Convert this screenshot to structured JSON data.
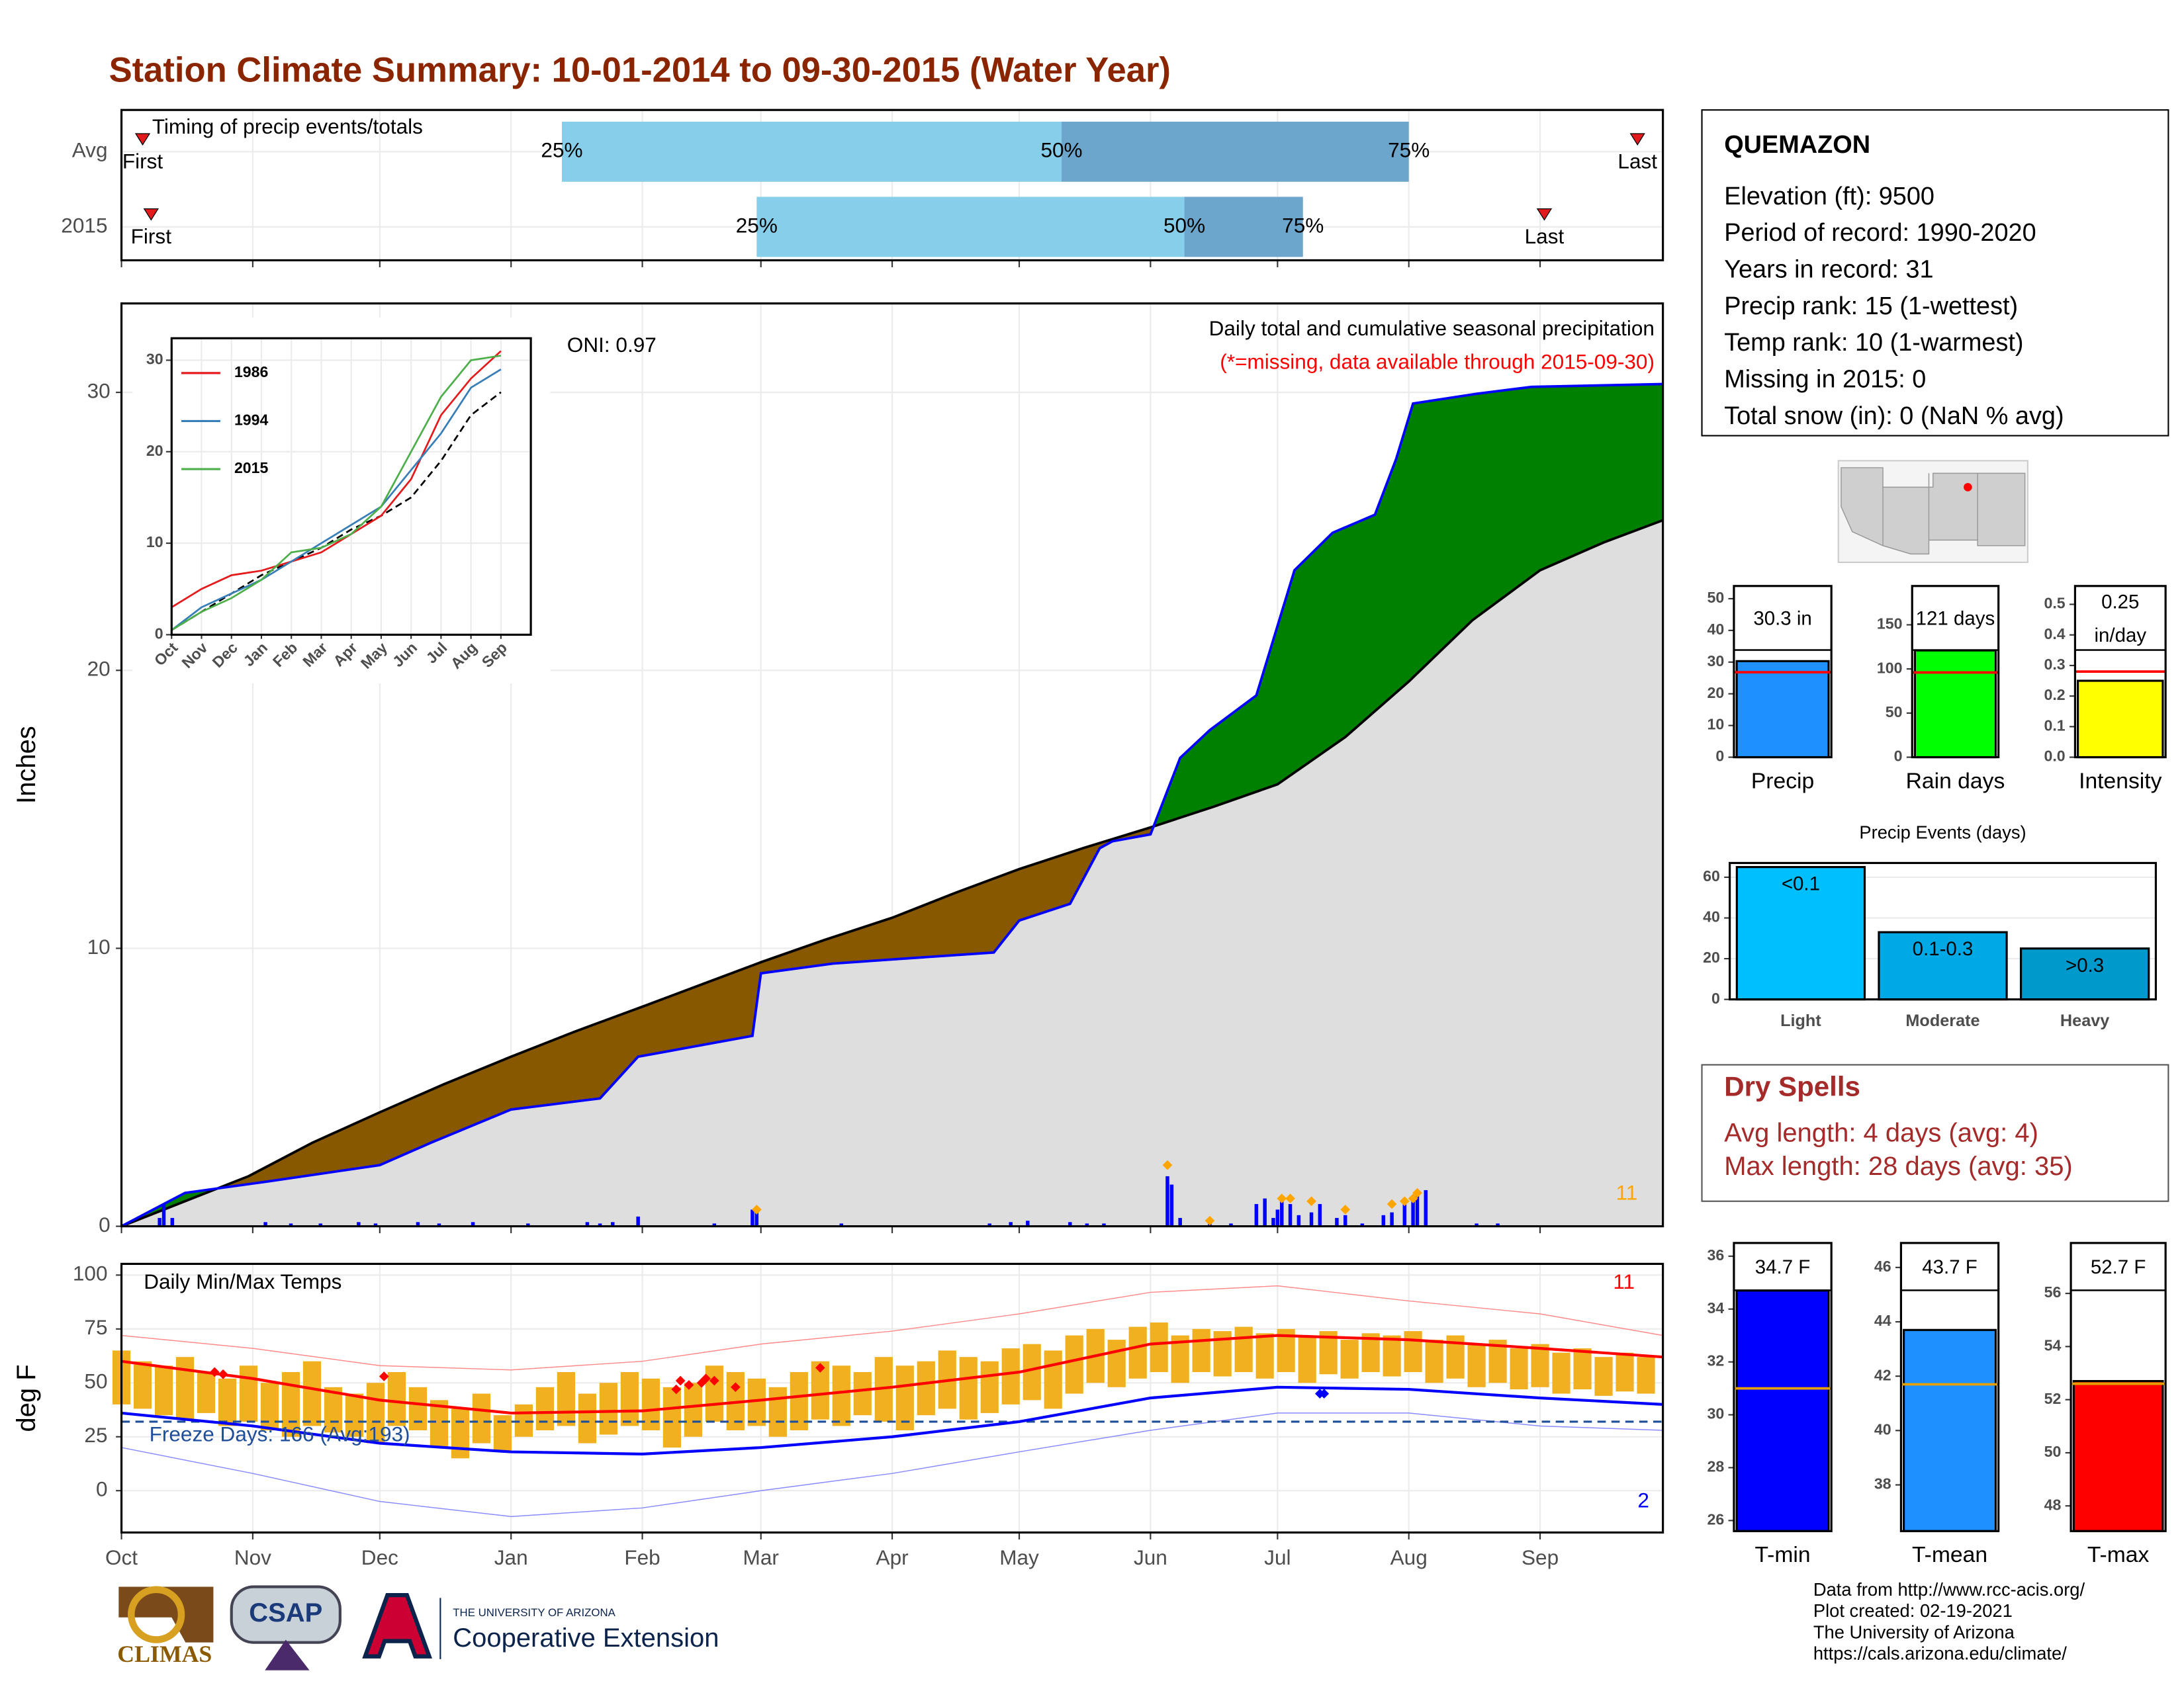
{
  "header": {
    "title": "Station Climate Summary: 10-01-2014 to 09-30-2015 (Water Year)"
  },
  "station": {
    "name": "QUEMAZON",
    "lines": [
      "Elevation (ft): 9500",
      "Period of record: 1990-2020",
      "Years in record: 31",
      "Precip rank: 15 (1-wettest)",
      "Temp rank: 10 (1-warmest)",
      "Missing in 2015: 0",
      "Total snow (in): 0 (NaN % avg)"
    ]
  },
  "dry_spells": {
    "title": "Dry Spells",
    "lines": [
      "Avg length: 4 days (avg: 4)",
      "Max length: 28 days (avg: 35)"
    ]
  },
  "footer": {
    "lines": [
      "Data from http://www.rcc-acis.org/",
      "Plot created: 02-19-2021",
      "The University of Arizona",
      "https://cals.arizona.edu/climate/"
    ]
  },
  "logos": {
    "climas": "CLIMAS",
    "csap": "CSAP",
    "university": "THE UNIVERSITY OF ARIZONA",
    "extension": "Cooperative Extension"
  },
  "chart_data": [
    {
      "type": "timing",
      "title": "Timing of precip events/totals",
      "categories": [
        "Avg",
        "2015"
      ],
      "first": [
        5,
        7
      ],
      "q25": [
        104,
        150
      ],
      "q50": [
        222,
        251
      ],
      "q75": [
        304,
        279
      ],
      "last": [
        358,
        336
      ],
      "first_label": "First",
      "last_label": "Last",
      "quantile_labels": [
        "25%",
        "50%",
        "75%"
      ],
      "colors": [
        "#87ceeb",
        "#6ca6cd"
      ],
      "marker_color": "#e31a1c",
      "xlim": [
        0,
        364
      ],
      "xticks": [
        0,
        31,
        61,
        92,
        123,
        151,
        182,
        212,
        243,
        273,
        304,
        335
      ],
      "grid": true
    },
    {
      "type": "cumulative",
      "title": "Daily total and cumulative seasonal precipitation",
      "subtitle": "(*=missing, data available through 2015-09-30)",
      "annotation": "ONI: 0.97",
      "count": 11,
      "ylabel": "Inches",
      "xlim": [
        0,
        364
      ],
      "ylim": [
        0,
        33.2
      ],
      "xticks": [
        0,
        31,
        61,
        92,
        123,
        151,
        182,
        212,
        243,
        273,
        304,
        335
      ],
      "yticks": [
        0,
        10,
        20,
        30
      ],
      "grid": true,
      "average": {
        "x": [
          0,
          15,
          30,
          45,
          61,
          76,
          92,
          107,
          123,
          137,
          151,
          166,
          182,
          197,
          212,
          227,
          243,
          258,
          273,
          289,
          304,
          319,
          335,
          350,
          364
        ],
        "values": [
          0,
          0.9,
          1.8,
          3.0,
          4.1,
          5.1,
          6.1,
          7.0,
          7.9,
          8.7,
          9.5,
          10.3,
          11.1,
          12.0,
          12.85,
          13.6,
          14.35,
          15.1,
          15.9,
          17.6,
          19.6,
          21.8,
          23.6,
          24.6,
          25.4
        ],
        "color": "#000000",
        "fill": "#dedede"
      },
      "series": [
        {
          "x": [
            0,
            10,
            15,
            34,
            61,
            73,
            92,
            113,
            122,
            149,
            151,
            168,
            182,
            206,
            212,
            224,
            231,
            234,
            243,
            250,
            257,
            268,
            277,
            286,
            296,
            301,
            305,
            320,
            333,
            364
          ],
          "values": [
            0,
            0.8,
            1.2,
            1.6,
            2.2,
            3.0,
            4.2,
            4.6,
            6.1,
            6.85,
            9.1,
            9.45,
            9.6,
            9.85,
            11.0,
            11.6,
            13.6,
            13.85,
            14.1,
            16.85,
            17.85,
            19.1,
            23.6,
            24.95,
            25.6,
            27.6,
            29.6,
            29.95,
            30.2,
            30.3
          ],
          "color": "#0000ff"
        }
      ],
      "above_color": "#008000",
      "below_color": "#875800",
      "daily": {
        "x": [
          9,
          10,
          12,
          34,
          40,
          47,
          56,
          60,
          70,
          75,
          83,
          96,
          110,
          113,
          116,
          122,
          140,
          149,
          150,
          170,
          205,
          210,
          214,
          224,
          228,
          232,
          247,
          248,
          250,
          257,
          262,
          268,
          270,
          272,
          273,
          274,
          276,
          278,
          281,
          283,
          287,
          289,
          293,
          298,
          300,
          303,
          305,
          306,
          308,
          320,
          325
        ],
        "values": [
          0.3,
          0.8,
          0.3,
          0.15,
          0.1,
          0.1,
          0.15,
          0.1,
          0.15,
          0.1,
          0.15,
          0.1,
          0.15,
          0.1,
          0.15,
          0.35,
          0.1,
          0.6,
          0.5,
          0.1,
          0.1,
          0.15,
          0.2,
          0.15,
          0.1,
          0.1,
          1.8,
          1.5,
          0.3,
          0.1,
          0.1,
          0.8,
          1.0,
          0.3,
          0.6,
          1.0,
          0.8,
          0.4,
          0.5,
          0.8,
          0.3,
          0.4,
          0.1,
          0.4,
          0.5,
          0.9,
          0.9,
          1.1,
          1.3,
          0.1,
          0.1
        ],
        "color": "#0000ff"
      },
      "events": {
        "x": [
          150,
          247,
          257,
          274,
          276,
          281,
          289,
          300,
          303,
          305,
          306
        ],
        "values": [
          0.6,
          2.2,
          0.2,
          1.0,
          1.0,
          0.9,
          0.6,
          0.8,
          0.9,
          1.0,
          1.2
        ],
        "color": "#ffa500"
      }
    },
    {
      "type": "line",
      "categories": [
        "Oct",
        "Nov",
        "Dec",
        "Jan",
        "Feb",
        "Mar",
        "Apr",
        "May",
        "Jun",
        "Jul",
        "Aug",
        "Sep"
      ],
      "series": [
        {
          "name": "1986",
          "color": "#e41a1c",
          "values": [
            3,
            5,
            6.5,
            7,
            8,
            9,
            11,
            13,
            17,
            24,
            28,
            31
          ]
        },
        {
          "name": "1994",
          "color": "#377eb8",
          "values": [
            0.5,
            3,
            4.5,
            6,
            8,
            10,
            12,
            14,
            18,
            22,
            27,
            29
          ]
        },
        {
          "name": "2015",
          "color": "#4daf4a",
          "values": [
            0.5,
            2.5,
            4,
            6,
            9,
            9.5,
            11,
            14,
            20,
            26,
            30,
            30.5
          ]
        }
      ],
      "average": {
        "values": [
          0.5,
          2.5,
          4.5,
          6.5,
          8,
          9.5,
          11.5,
          13,
          15,
          19,
          24,
          26.5
        ],
        "color": "#000000"
      },
      "ylim": [
        0,
        32.4
      ],
      "yticks": [
        0,
        10,
        20,
        30
      ],
      "grid": true
    },
    {
      "type": "temperature",
      "title": "Daily Min/Max Temps",
      "annotation": "Freeze Days: 166 (Avg:193)",
      "ylabel": "deg F",
      "xlim": [
        0,
        364
      ],
      "ylim": [
        -19.4,
        105.2
      ],
      "xticks": [
        {
          "value": 0,
          "label": "Oct"
        },
        {
          "value": 31,
          "label": "Nov"
        },
        {
          "value": 61,
          "label": "Dec"
        },
        {
          "value": 92,
          "label": "Jan"
        },
        {
          "value": 123,
          "label": "Feb"
        },
        {
          "value": 151,
          "label": "Mar"
        },
        {
          "value": 182,
          "label": "Apr"
        },
        {
          "value": 212,
          "label": "May"
        },
        {
          "value": 243,
          "label": "Jun"
        },
        {
          "value": 273,
          "label": "Jul"
        },
        {
          "value": 304,
          "label": "Aug"
        },
        {
          "value": 335,
          "label": "Sep"
        }
      ],
      "yticks": [
        0,
        25,
        50,
        75,
        100
      ],
      "grid": true,
      "freeze": 32,
      "freeze_color": "#1f4e99",
      "daily": {
        "x": [
          0,
          5,
          10,
          15,
          20,
          25,
          30,
          35,
          40,
          45,
          50,
          55,
          60,
          65,
          70,
          75,
          80,
          85,
          90,
          95,
          100,
          105,
          110,
          115,
          120,
          125,
          130,
          135,
          140,
          145,
          150,
          155,
          160,
          165,
          170,
          175,
          180,
          185,
          190,
          195,
          200,
          205,
          210,
          215,
          220,
          225,
          230,
          235,
          240,
          245,
          250,
          255,
          260,
          265,
          270,
          275,
          280,
          285,
          290,
          295,
          300,
          305,
          310,
          315,
          320,
          325,
          330,
          335,
          340,
          345,
          350,
          355,
          360
        ],
        "low": [
          40,
          38,
          35,
          33,
          36,
          30,
          32,
          28,
          25,
          30,
          27,
          25,
          22,
          30,
          28,
          20,
          15,
          22,
          18,
          25,
          28,
          30,
          22,
          26,
          30,
          28,
          20,
          25,
          32,
          28,
          30,
          25,
          28,
          33,
          30,
          35,
          32,
          28,
          35,
          38,
          33,
          36,
          40,
          42,
          38,
          45,
          50,
          48,
          52,
          55,
          50,
          55,
          53,
          55,
          52,
          55,
          50,
          54,
          52,
          55,
          53,
          55,
          50,
          52,
          48,
          50,
          47,
          48,
          45,
          47,
          44,
          46,
          45
        ],
        "high": [
          65,
          60,
          58,
          62,
          55,
          52,
          58,
          50,
          55,
          60,
          48,
          45,
          50,
          55,
          48,
          42,
          38,
          45,
          35,
          40,
          48,
          55,
          45,
          50,
          55,
          52,
          48,
          50,
          58,
          55,
          52,
          48,
          55,
          60,
          58,
          55,
          62,
          58,
          60,
          65,
          62,
          60,
          66,
          68,
          65,
          72,
          75,
          70,
          76,
          78,
          72,
          75,
          74,
          76,
          73,
          75,
          72,
          74,
          70,
          73,
          72,
          74,
          70,
          72,
          68,
          70,
          66,
          68,
          64,
          66,
          62,
          64,
          62
        ],
        "color": "#f0b020"
      },
      "lines": [
        {
          "x": [
            0,
            31,
            61,
            92,
            123,
            151,
            182,
            212,
            243,
            273,
            304,
            335,
            364
          ],
          "values": [
            72,
            66,
            58,
            56,
            60,
            68,
            74,
            82,
            92,
            95,
            88,
            82,
            72
          ],
          "color": "#ff8a8a",
          "width": 0.7
        },
        {
          "x": [
            0,
            31,
            61,
            92,
            123,
            151,
            182,
            212,
            243,
            273,
            304,
            335,
            364
          ],
          "values": [
            20,
            8,
            -5,
            -12,
            -8,
            0,
            8,
            18,
            28,
            36,
            36,
            30,
            28
          ],
          "color": "#8a8aff",
          "width": 0.7
        },
        {
          "x": [
            0,
            31,
            61,
            92,
            123,
            151,
            182,
            212,
            243,
            273,
            304,
            335,
            364
          ],
          "values": [
            60,
            52,
            42,
            36,
            37,
            42,
            48,
            55,
            68,
            72,
            70,
            66,
            62
          ],
          "color": "#ff0000",
          "width": 2
        },
        {
          "x": [
            0,
            31,
            61,
            92,
            123,
            151,
            182,
            212,
            243,
            273,
            304,
            335,
            364
          ],
          "values": [
            36,
            30,
            22,
            18,
            17,
            20,
            25,
            32,
            43,
            48,
            47,
            43,
            40
          ],
          "color": "#0000ff",
          "width": 2
        }
      ],
      "records_high": {
        "x": [
          22,
          24,
          62,
          131,
          132,
          134,
          137,
          138,
          140,
          145,
          165
        ],
        "values": [
          55,
          54,
          53,
          47,
          51,
          49,
          50,
          52,
          51,
          48,
          57
        ],
        "color": "#ff0000"
      },
      "records_low": {
        "x": [
          283,
          284
        ],
        "values": [
          45,
          45
        ],
        "color": "#0000ff"
      },
      "high_count": 11,
      "low_count": 2
    },
    {
      "type": "single-bar",
      "categories": [
        "Precip"
      ],
      "values": [
        30.3
      ],
      "value_labels": [
        "30.3 in"
      ],
      "average": 26.8,
      "average_color": "#ff0000",
      "color": "#1e90ff",
      "ylim": [
        0,
        54
      ],
      "yticks": [
        0,
        10,
        20,
        30,
        40,
        50
      ]
    },
    {
      "type": "single-bar",
      "categories": [
        "Rain days"
      ],
      "values": [
        121
      ],
      "value_labels": [
        "121 days"
      ],
      "average": 96,
      "average_color": "#ff0000",
      "color": "#00ff00",
      "ylim": [
        0,
        194
      ],
      "yticks": [
        0,
        50,
        100,
        150
      ]
    },
    {
      "type": "single-bar",
      "categories": [
        "Intensity"
      ],
      "values": [
        0.25
      ],
      "value_labels": [
        "0.25 in/day"
      ],
      "average": 0.28,
      "average_color": "#ff0000",
      "color": "#ffff00",
      "ylim": [
        0,
        0.56
      ],
      "yticks": [
        {
          "value": 0,
          "label": "0.0"
        },
        0.1,
        0.2,
        0.3,
        0.4,
        0.5
      ]
    },
    {
      "type": "bar",
      "title": "Precip Events (days)",
      "categories": [
        "Light",
        "Moderate",
        "Heavy"
      ],
      "bar_labels": [
        "<0.1",
        "0.1-0.3",
        ">0.3"
      ],
      "values": [
        65,
        33,
        25
      ],
      "colors": [
        "#00bfff",
        "#00a9e6",
        "#0099cc"
      ],
      "ylim": [
        0,
        67
      ],
      "yticks": [
        0,
        20,
        40,
        60
      ],
      "grid": true
    },
    {
      "type": "single-bar",
      "categories": [
        "T-min"
      ],
      "values": [
        34.7
      ],
      "value_labels": [
        "34.7 F"
      ],
      "average": 31,
      "average_color": "#e69f00",
      "color": "#0000ff",
      "ylim": [
        25.6,
        36.5
      ],
      "yticks": [
        26,
        28,
        30,
        32,
        34,
        36
      ]
    },
    {
      "type": "single-bar",
      "categories": [
        "T-mean"
      ],
      "values": [
        43.7
      ],
      "value_labels": [
        "43.7 F"
      ],
      "average": 41.7,
      "average_color": "#e69f00",
      "color": "#1e90ff",
      "ylim": [
        36.3,
        46.9
      ],
      "yticks": [
        38,
        40,
        42,
        44,
        46
      ]
    },
    {
      "type": "single-bar",
      "categories": [
        "T-max"
      ],
      "values": [
        52.7
      ],
      "value_labels": [
        "52.7 F"
      ],
      "average": 52.6,
      "average_color": "#e69f00",
      "color": "#ff0000",
      "ylim": [
        47.05,
        57.9
      ],
      "yticks": [
        48,
        50,
        52,
        54,
        56
      ]
    }
  ]
}
